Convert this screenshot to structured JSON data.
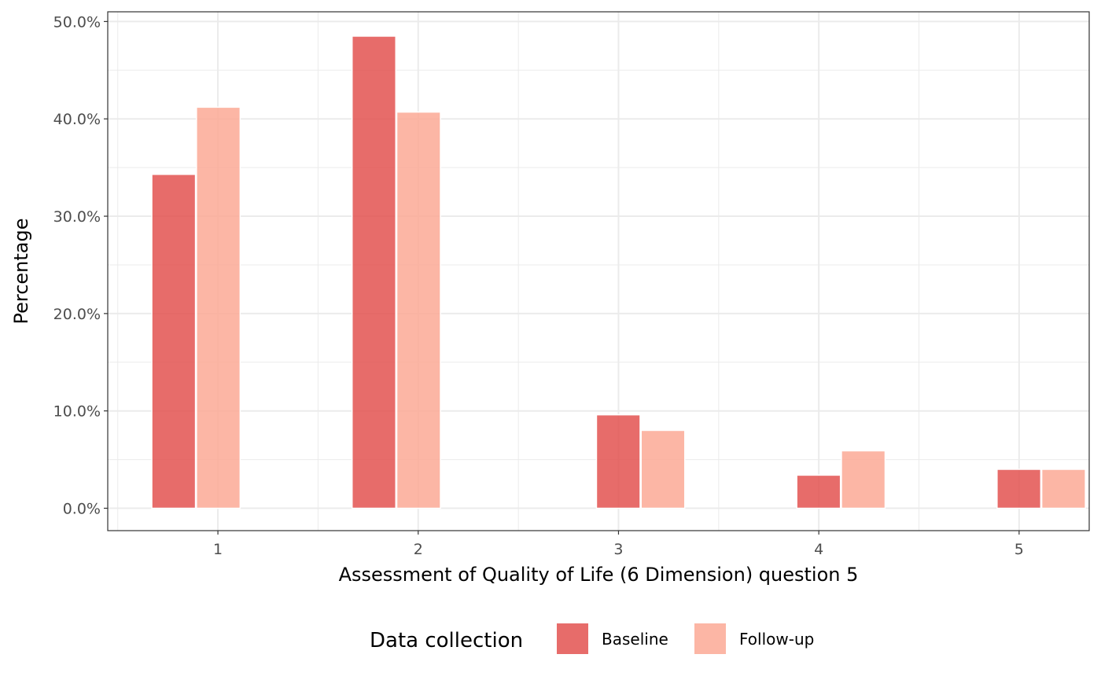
{
  "chart_data": {
    "type": "bar",
    "title": "",
    "xlabel": "Assessment of Quality of Life (6 Dimension) question 5",
    "ylabel": "Percentage",
    "categories": [
      "1",
      "2",
      "3",
      "4",
      "5"
    ],
    "series": [
      {
        "name": "Baseline",
        "color": "#E35250",
        "values": [
          34.3,
          48.5,
          9.6,
          3.4,
          4.0
        ]
      },
      {
        "name": "Follow-up",
        "color": "#FCA995",
        "values": [
          41.2,
          40.7,
          8.0,
          5.9,
          4.0
        ]
      }
    ],
    "ylim": [
      -2.3,
      51.0
    ],
    "yticks": [
      0,
      10,
      20,
      30,
      40,
      50
    ],
    "ytick_labels": [
      "0.0%",
      "10.0%",
      "20.0%",
      "30.0%",
      "40.0%",
      "50.0%"
    ],
    "grid": true,
    "legend": {
      "title": "Data collection",
      "position": "bottom"
    }
  }
}
